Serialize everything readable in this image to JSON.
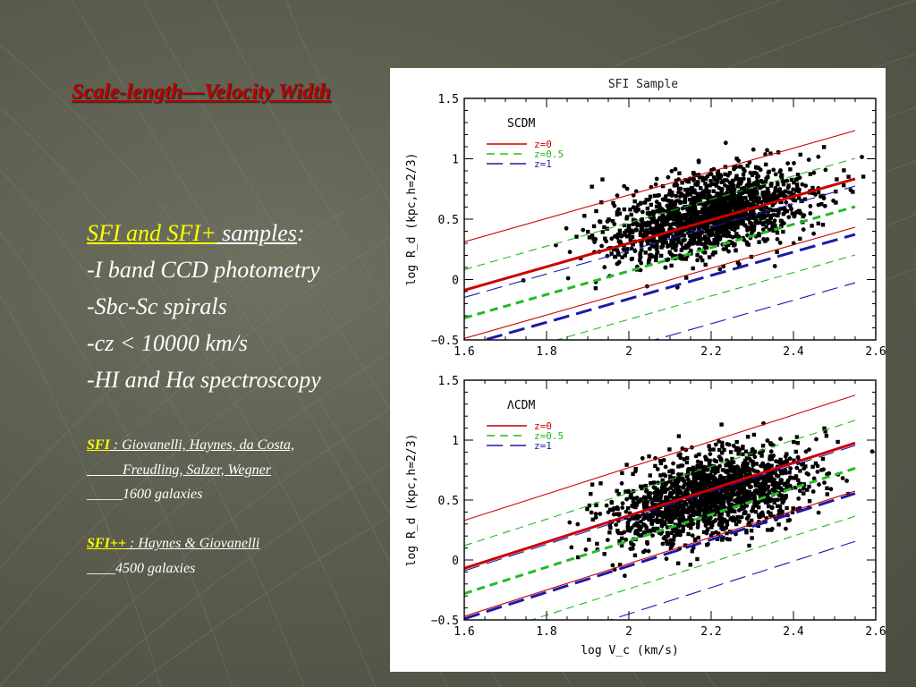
{
  "slide": {
    "title": "Scale-length—Velocity Width",
    "samples_heading_yellow": "SFI  and SFI+",
    "samples_heading_rest": " samples",
    "samples_heading_colon": ":",
    "bullets": [
      "-I band CCD photometry",
      "-Sbc-Sc spirals",
      "-cz < 10000 km/s",
      "-HI and Hα  spectroscopy"
    ],
    "refs": [
      {
        "tag": "SFI",
        "text": " : Giovanelli, Haynes, da Costa,"
      },
      {
        "tag": "",
        "text": "_____Freudling, Salzer, Wegner"
      },
      {
        "tag": "",
        "text": "_____1600 galaxies"
      },
      {
        "tag": "",
        "text": " "
      },
      {
        "tag": "SFI++",
        "text": " : Haynes & Giovanelli"
      },
      {
        "tag": "",
        "text": "____4500 galaxies"
      }
    ],
    "colors": {
      "title": "#c00000",
      "highlight": "#ffff00",
      "text": "#ffffff"
    }
  },
  "chart_data": [
    {
      "type": "scatter",
      "title": "SFI Sample",
      "model_label": "SCDM",
      "xlabel": "",
      "ylabel": "log R_d (kpc,h=2/3)",
      "xlim": [
        1.6,
        2.6
      ],
      "ylim": [
        -0.5,
        1.5
      ],
      "xticks": [
        "1.6",
        "1.8",
        "2",
        "2.2",
        "2.4",
        "2.6"
      ],
      "yticks": [
        "−0.5",
        "0",
        "0.5",
        "1",
        "1.5"
      ],
      "legend": [
        {
          "label": "z=0",
          "color": "#cc0000",
          "dash": "solid"
        },
        {
          "label": "z=0.5",
          "color": "#22bb22",
          "dash": "dashed"
        },
        {
          "label": "z=1",
          "color": "#1a1aaa",
          "dash": "longdash"
        }
      ],
      "model_lines": [
        {
          "z": "0",
          "color": "#cc0000",
          "style": "thick",
          "slope": 0.97,
          "intercept": -1.64,
          "scatter": 0.4
        },
        {
          "z": "0.5",
          "color": "#22bb22",
          "style": "thick-dashed",
          "slope": 0.97,
          "intercept": -1.87,
          "scatter": 0.4
        },
        {
          "z": "1",
          "color": "#1a1aaa",
          "style": "thick-longdash",
          "slope": 0.97,
          "intercept": -2.1,
          "scatter": 0.4
        }
      ],
      "points_model": {
        "n": 1600,
        "x_center": 2.2,
        "x_sd": 0.12,
        "slope": 0.7,
        "intercept": -1.0,
        "y_sd": 0.17,
        "seed": 7
      }
    },
    {
      "type": "scatter",
      "title": "",
      "model_label": "ΛCDM",
      "xlabel": "log V_c (km/s)",
      "ylabel": "log R_d (kpc,h=2/3)",
      "xlim": [
        1.6,
        2.6
      ],
      "ylim": [
        -0.5,
        1.5
      ],
      "xticks": [
        "1.6",
        "1.8",
        "2",
        "2.2",
        "2.4",
        "2.6"
      ],
      "yticks": [
        "−0.5",
        "0",
        "0.5",
        "1",
        "1.5"
      ],
      "legend": [
        {
          "label": "z=0",
          "color": "#cc0000",
          "dash": "solid"
        },
        {
          "label": "z=0.5",
          "color": "#22bb22",
          "dash": "dashed"
        },
        {
          "label": "z=1",
          "color": "#1a1aaa",
          "dash": "longdash"
        }
      ],
      "model_lines": [
        {
          "z": "0",
          "color": "#cc0000",
          "style": "thick",
          "slope": 1.1,
          "intercept": -1.83,
          "scatter": 0.4
        },
        {
          "z": "0.5",
          "color": "#22bb22",
          "style": "thick-dashed",
          "slope": 1.1,
          "intercept": -2.04,
          "scatter": 0.4
        },
        {
          "z": "1",
          "color": "#1a1aaa",
          "style": "thick-longdash",
          "slope": 1.1,
          "intercept": -2.25,
          "scatter": 0.4
        }
      ],
      "points_model": {
        "n": 1600,
        "x_center": 2.2,
        "x_sd": 0.12,
        "slope": 0.7,
        "intercept": -1.0,
        "y_sd": 0.17,
        "seed": 11
      }
    }
  ]
}
